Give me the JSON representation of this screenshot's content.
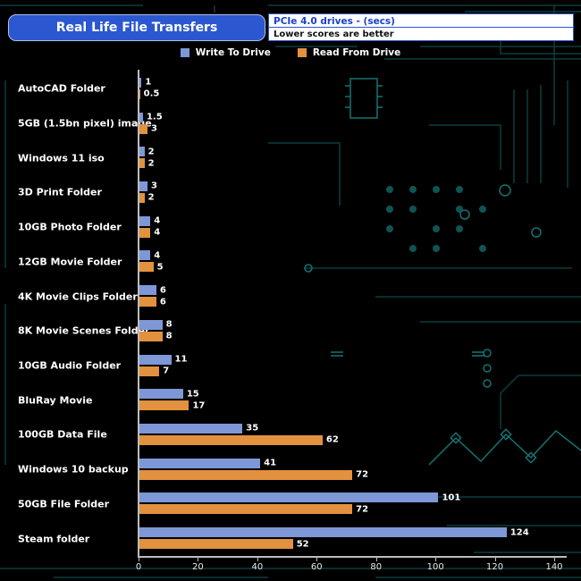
{
  "header": {
    "title": "Real Life File Transfers",
    "subtitle_right_top": "PCIe 4.0 drives - (secs)",
    "subtitle_right_bottom": "Lower scores are better"
  },
  "legend": [
    {
      "label": "Write To  Drive",
      "color": "#7e97d6"
    },
    {
      "label": "Read From  Drive",
      "color": "#e2913e"
    }
  ],
  "colors": {
    "background": "#000000",
    "title_box": "#2b58d0",
    "circuit_trace": "#0c3e3e",
    "circuit_accent": "#157272",
    "axis": "#bcbcbc",
    "text": "#ffffff"
  },
  "chart_data": {
    "type": "bar",
    "orientation": "horizontal",
    "title": "Real Life File Transfers",
    "subtitle": "PCIe 4.0 drives - (secs)",
    "note": "Lower scores are better",
    "xlabel": "",
    "ylabel": "",
    "xlim": [
      0,
      140
    ],
    "xticks": [
      0,
      20,
      40,
      60,
      80,
      100,
      120,
      140
    ],
    "grid": false,
    "legend_position": "top",
    "categories": [
      "AutoCAD Folder",
      "5GB (1.5bn pixel) image",
      "Windows 11 iso",
      "3D Print Folder",
      "10GB Photo Folder",
      "12GB Movie Folder",
      "4K Movie Clips Folder",
      "8K Movie Scenes Folder",
      "10GB Audio Folder",
      "BluRay Movie",
      "100GB Data File",
      "Windows 10 backup",
      "50GB File Folder",
      "Steam folder"
    ],
    "series": [
      {
        "name": "Write To Drive",
        "color": "#7e97d6",
        "values": [
          1,
          1.5,
          2,
          3,
          4,
          4,
          6,
          8,
          11,
          15,
          35,
          41,
          101,
          124
        ],
        "labels": [
          "1",
          "1.5",
          "2",
          "3",
          "4",
          "4",
          "6",
          "8",
          "11",
          "15",
          "35",
          "41",
          "101",
          "124"
        ]
      },
      {
        "name": "Read From Drive",
        "color": "#e2913e",
        "values": [
          0.5,
          3,
          2,
          2,
          4,
          5,
          6,
          8,
          7,
          17,
          62,
          72,
          72,
          52
        ],
        "labels": [
          "0.5",
          "3",
          "2",
          "2",
          "4",
          "5",
          "6",
          "8",
          "7",
          "17",
          "62",
          "72",
          "72",
          "52"
        ]
      }
    ]
  }
}
